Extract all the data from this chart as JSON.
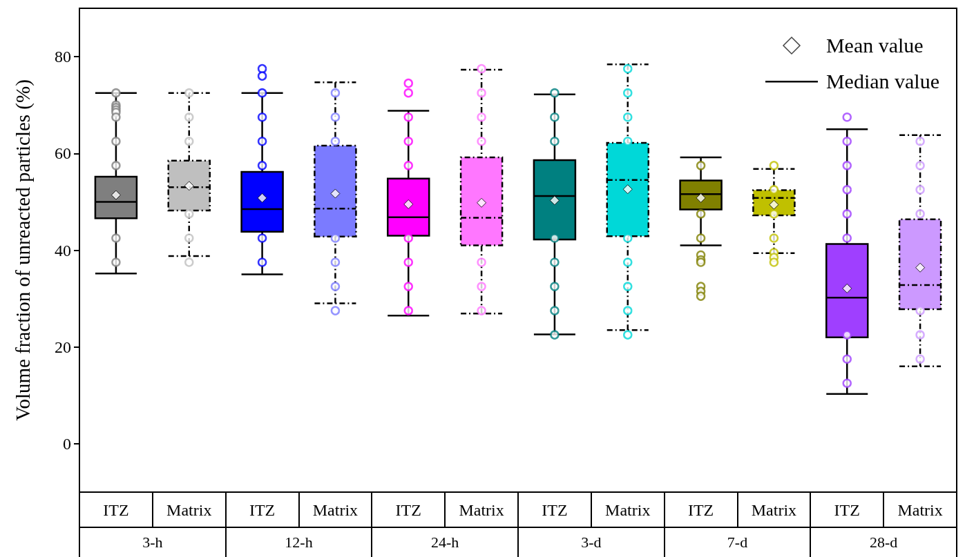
{
  "chart_data": {
    "type": "box",
    "ylabel": "Volume fraction of unreacted particles (%)",
    "categories": [
      "ITZ",
      "Matrix",
      "ITZ",
      "Matrix",
      "ITZ",
      "Matrix",
      "ITZ",
      "Matrix",
      "ITZ",
      "Matrix",
      "ITZ",
      "Matrix"
    ],
    "ylim": [
      -10,
      90
    ],
    "yticks": [
      0,
      20,
      40,
      60,
      80
    ],
    "marker": "diamond",
    "annotations": [
      "Mean value",
      "Median value",
      "3-h",
      "12-h",
      "24-h",
      "3-d",
      "7-d",
      "28-d"
    ],
    "series": [
      {
        "line_style": "solid",
        "colors": [
          "#7f7f7f",
          null,
          "#0000ff",
          null,
          "#ff00ff",
          null,
          "#008080",
          null,
          "#808000",
          null,
          "#9f3fff",
          null
        ],
        "boxes": [
          {
            "low": 35.2,
            "q1": 46.6,
            "median": 50,
            "q3": 55.2,
            "high": 72.5,
            "mean": 51.4,
            "outliers": [
              72.5,
              70,
              69.5,
              69,
              68.5,
              67.5,
              62.5,
              57.5,
              42.5,
              37.5
            ]
          },
          null,
          {
            "low": 35,
            "q1": 43.8,
            "median": 48.5,
            "q3": 56.2,
            "high": 72.5,
            "mean": 50.8,
            "outliers": [
              77.5,
              76,
              72.5,
              67.5,
              62.5,
              57.5,
              42.5,
              37.5
            ]
          },
          null,
          {
            "low": 26.5,
            "q1": 43,
            "median": 46.8,
            "q3": 54.8,
            "high": 68.8,
            "mean": 49.5,
            "outliers": [
              74.5,
              72.5,
              67.5,
              62.5,
              57.5,
              42.5,
              37.5,
              32.5,
              27.5
            ]
          },
          null,
          {
            "low": 22.6,
            "q1": 42.2,
            "median": 51.2,
            "q3": 58.6,
            "high": 72.2,
            "mean": 50.3,
            "outliers": [
              72.5,
              67.5,
              62.5,
              42.5,
              37.5,
              32.5,
              27.5,
              22.5
            ]
          },
          null,
          {
            "low": 41,
            "q1": 48.4,
            "median": 51.6,
            "q3": 54.4,
            "high": 59.2,
            "mean": 50.8,
            "outliers": [
              57.5,
              47.5,
              42.5,
              39,
              38,
              37.5,
              32.5,
              31.5,
              30.5
            ]
          },
          null,
          {
            "low": 10.3,
            "q1": 22,
            "median": 30.2,
            "q3": 41.3,
            "high": 65,
            "mean": 32.1,
            "outliers": [
              67.5,
              62.5,
              57.5,
              52.5,
              47.5,
              42.5,
              22.5,
              17.5,
              12.5
            ]
          },
          null
        ]
      },
      {
        "line_style": "dashed",
        "colors": [
          null,
          "#bfbfbf",
          null,
          "#7b7bff",
          null,
          "#ff77ff",
          null,
          "#00d8d8",
          null,
          "#c0c000",
          null,
          "#cc99ff"
        ],
        "boxes": [
          null,
          {
            "low": 38.8,
            "q1": 48.2,
            "median": 53,
            "q3": 58.5,
            "high": 72.5,
            "mean": 53.3,
            "outliers": [
              72.5,
              67.5,
              62.5,
              47.5,
              42.5,
              37.5
            ]
          },
          null,
          {
            "low": 29,
            "q1": 42.8,
            "median": 48.6,
            "q3": 61.6,
            "high": 74.7,
            "mean": 51.7,
            "outliers": [
              72.5,
              67.5,
              62.5,
              42.5,
              37.5,
              32.5,
              27.5
            ]
          },
          null,
          {
            "low": 26.9,
            "q1": 41,
            "median": 46.7,
            "q3": 59.2,
            "high": 77.3,
            "mean": 49.8,
            "outliers": [
              77.5,
              72.5,
              67.5,
              62.5,
              37.5,
              32.5,
              27.5
            ]
          },
          null,
          {
            "low": 23.5,
            "q1": 42.9,
            "median": 54.5,
            "q3": 62.2,
            "high": 78.4,
            "mean": 52.6,
            "outliers": [
              77.5,
              72.5,
              67.5,
              62.5,
              42.5,
              37.5,
              32.5,
              27.5,
              22.5
            ]
          },
          null,
          {
            "low": 39.4,
            "q1": 47.2,
            "median": 50.8,
            "q3": 52.4,
            "high": 56.8,
            "mean": 49.4,
            "outliers": [
              57.5,
              52.5,
              47.5,
              42.5,
              39.5,
              38.5,
              37.5
            ]
          },
          null,
          {
            "low": 16,
            "q1": 27.8,
            "median": 32.8,
            "q3": 46.4,
            "high": 63.8,
            "mean": 36.4,
            "outliers": [
              62.5,
              57.5,
              52.5,
              47.5,
              27.5,
              22.5,
              17.5
            ]
          }
        ]
      }
    ]
  }
}
